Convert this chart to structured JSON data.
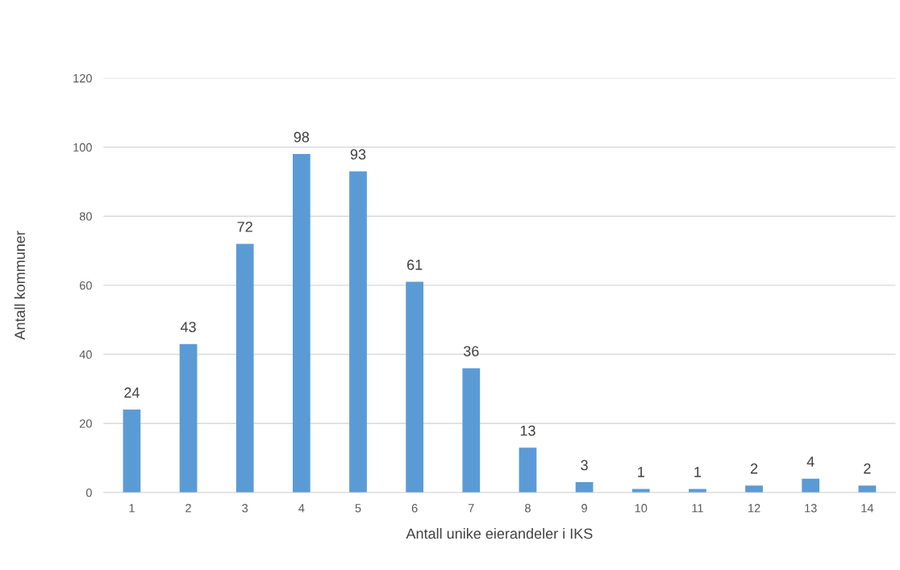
{
  "chart_data": {
    "type": "bar",
    "xlabel": "Antall unike eierandeler i IKS",
    "ylabel": "Antall kommuner",
    "categories": [
      "1",
      "2",
      "3",
      "4",
      "5",
      "6",
      "7",
      "8",
      "9",
      "10",
      "11",
      "12",
      "13",
      "14"
    ],
    "values": [
      24,
      43,
      72,
      98,
      93,
      61,
      36,
      13,
      3,
      1,
      1,
      2,
      4,
      2
    ],
    "color": "#5b9bd5",
    "ylim": [
      0,
      120
    ],
    "yticks": [
      0,
      20,
      40,
      60,
      80,
      100,
      120
    ],
    "grid": "y",
    "data_labels": true
  }
}
